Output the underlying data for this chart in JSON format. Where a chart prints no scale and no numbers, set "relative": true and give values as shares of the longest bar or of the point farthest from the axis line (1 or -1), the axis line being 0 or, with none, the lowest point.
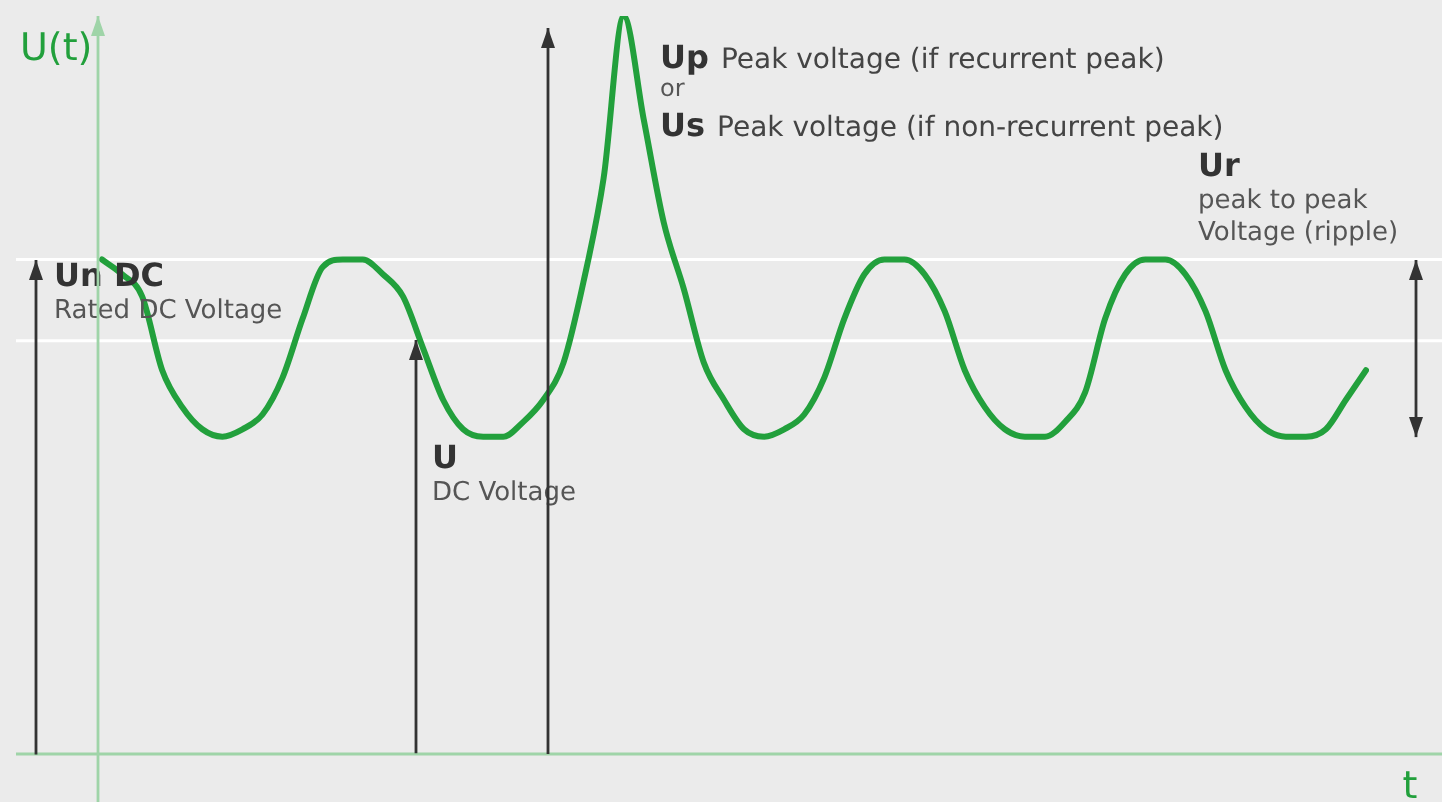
{
  "chart_data": {
    "type": "line",
    "relative": true,
    "xlabel": "t",
    "ylabel": "U(t)",
    "categories": [
      null,
      null,
      null,
      null,
      null,
      null,
      null,
      null,
      null,
      null,
      null,
      null,
      null,
      null,
      null,
      null,
      null,
      null,
      null,
      null,
      null,
      null,
      null,
      null,
      null,
      null,
      null,
      null,
      null,
      null,
      null,
      null,
      null,
      null,
      null,
      null,
      null,
      null,
      null,
      null,
      null,
      null,
      null,
      null,
      null,
      null,
      null,
      null,
      null,
      null,
      null,
      null,
      null,
      null,
      null,
      null,
      null,
      null,
      null,
      null,
      null,
      null,
      null,
      null
    ],
    "series": [
      {
        "color": "#22a03c",
        "values": [
          0.67,
          0.65,
          0.62,
          0.52,
          0.47,
          0.44,
          0.43,
          0.44,
          0.46,
          0.51,
          0.59,
          0.66,
          0.67,
          0.67,
          0.65,
          0.62,
          0.55,
          0.48,
          0.44,
          0.43,
          0.43,
          0.45,
          0.48,
          0.53,
          0.64,
          0.78,
          1,
          0.86,
          0.72,
          0.63,
          0.53,
          0.48,
          0.44,
          0.43,
          0.44,
          0.46,
          0.51,
          0.59,
          0.65,
          0.67,
          0.67,
          0.65,
          0.6,
          0.52,
          0.47,
          0.44,
          0.43,
          0.43,
          0.45,
          0.49,
          0.59,
          0.65,
          0.67,
          0.67,
          0.65,
          0.6,
          0.52,
          0.47,
          0.44,
          0.43,
          0.43,
          0.44,
          0.48,
          0.52
        ]
      }
    ],
    "ref_lines": [
      {
        "axis": "y",
        "value": 0.67,
        "color": "#ffffff"
      },
      {
        "axis": "y",
        "value": 0.56,
        "color": "#ffffff"
      }
    ],
    "annotations": [
      "Un DC",
      "Rated DC Voltage",
      "U",
      "DC Voltage",
      "Up",
      "Peak voltage (if recurrent peak)",
      "or",
      "Us",
      "Peak voltage (if non-recurrent peak)",
      "Ur",
      "peak to peak",
      "Voltage (ripple)"
    ],
    "legend": false,
    "marker": "none",
    "line_style": "solid"
  }
}
